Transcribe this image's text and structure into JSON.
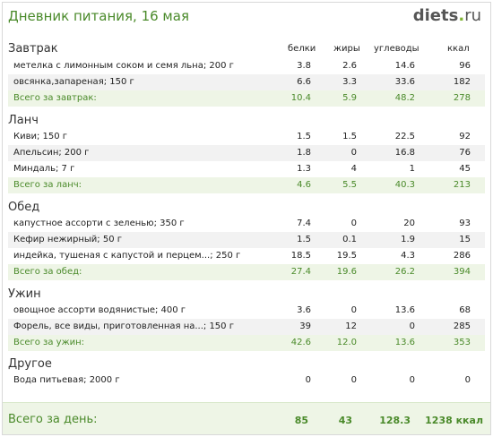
{
  "header": {
    "title": "Дневник питания, 16 мая",
    "logo_main": "diets",
    "logo_dot": ".",
    "logo_tld": "ru"
  },
  "columns": [
    "белки",
    "жиры",
    "углеводы",
    "ккал"
  ],
  "sections": [
    {
      "name": "Завтрак",
      "items": [
        {
          "name": "метелка с лимонным соком и семя льна; 200 г",
          "v": [
            "3.8",
            "2.6",
            "14.6",
            "96"
          ]
        },
        {
          "name": "овсянка,запареная; 150 г",
          "v": [
            "6.6",
            "3.3",
            "33.6",
            "182"
          ]
        }
      ],
      "total": {
        "name": "Всего за завтрак:",
        "v": [
          "10.4",
          "5.9",
          "48.2",
          "278"
        ]
      }
    },
    {
      "name": "Ланч",
      "items": [
        {
          "name": "Киви; 150 г",
          "v": [
            "1.5",
            "1.5",
            "22.5",
            "92"
          ]
        },
        {
          "name": "Апельсин; 200 г",
          "v": [
            "1.8",
            "0",
            "16.8",
            "76"
          ]
        },
        {
          "name": "Миндаль; 7 г",
          "v": [
            "1.3",
            "4",
            "1",
            "45"
          ]
        }
      ],
      "total": {
        "name": "Всего за ланч:",
        "v": [
          "4.6",
          "5.5",
          "40.3",
          "213"
        ]
      }
    },
    {
      "name": "Обед",
      "items": [
        {
          "name": "капустное ассорти с зеленью; 350 г",
          "v": [
            "7.4",
            "0",
            "20",
            "93"
          ]
        },
        {
          "name": "Кефир нежирный; 50 г",
          "v": [
            "1.5",
            "0.1",
            "1.9",
            "15"
          ]
        },
        {
          "name": "индейка, тушеная с капустой и перцем...; 250 г",
          "v": [
            "18.5",
            "19.5",
            "4.3",
            "286"
          ]
        }
      ],
      "total": {
        "name": "Всего за обед:",
        "v": [
          "27.4",
          "19.6",
          "26.2",
          "394"
        ]
      }
    },
    {
      "name": "Ужин",
      "items": [
        {
          "name": "овощное ассорти водянистые; 400 г",
          "v": [
            "3.6",
            "0",
            "13.6",
            "68"
          ]
        },
        {
          "name": "Форель, все виды, приготовленная на...; 150 г",
          "v": [
            "39",
            "12",
            "0",
            "285"
          ]
        }
      ],
      "total": {
        "name": "Всего за ужин:",
        "v": [
          "42.6",
          "12.0",
          "13.6",
          "353"
        ]
      }
    },
    {
      "name": "Другое",
      "items": [
        {
          "name": "Вода питьевая; 2000 г",
          "v": [
            "0",
            "0",
            "0",
            "0"
          ]
        }
      ]
    }
  ],
  "day_total": {
    "label": "Всего за день:",
    "v": [
      "85",
      "43",
      "128.3",
      "1238 ккал"
    ]
  }
}
